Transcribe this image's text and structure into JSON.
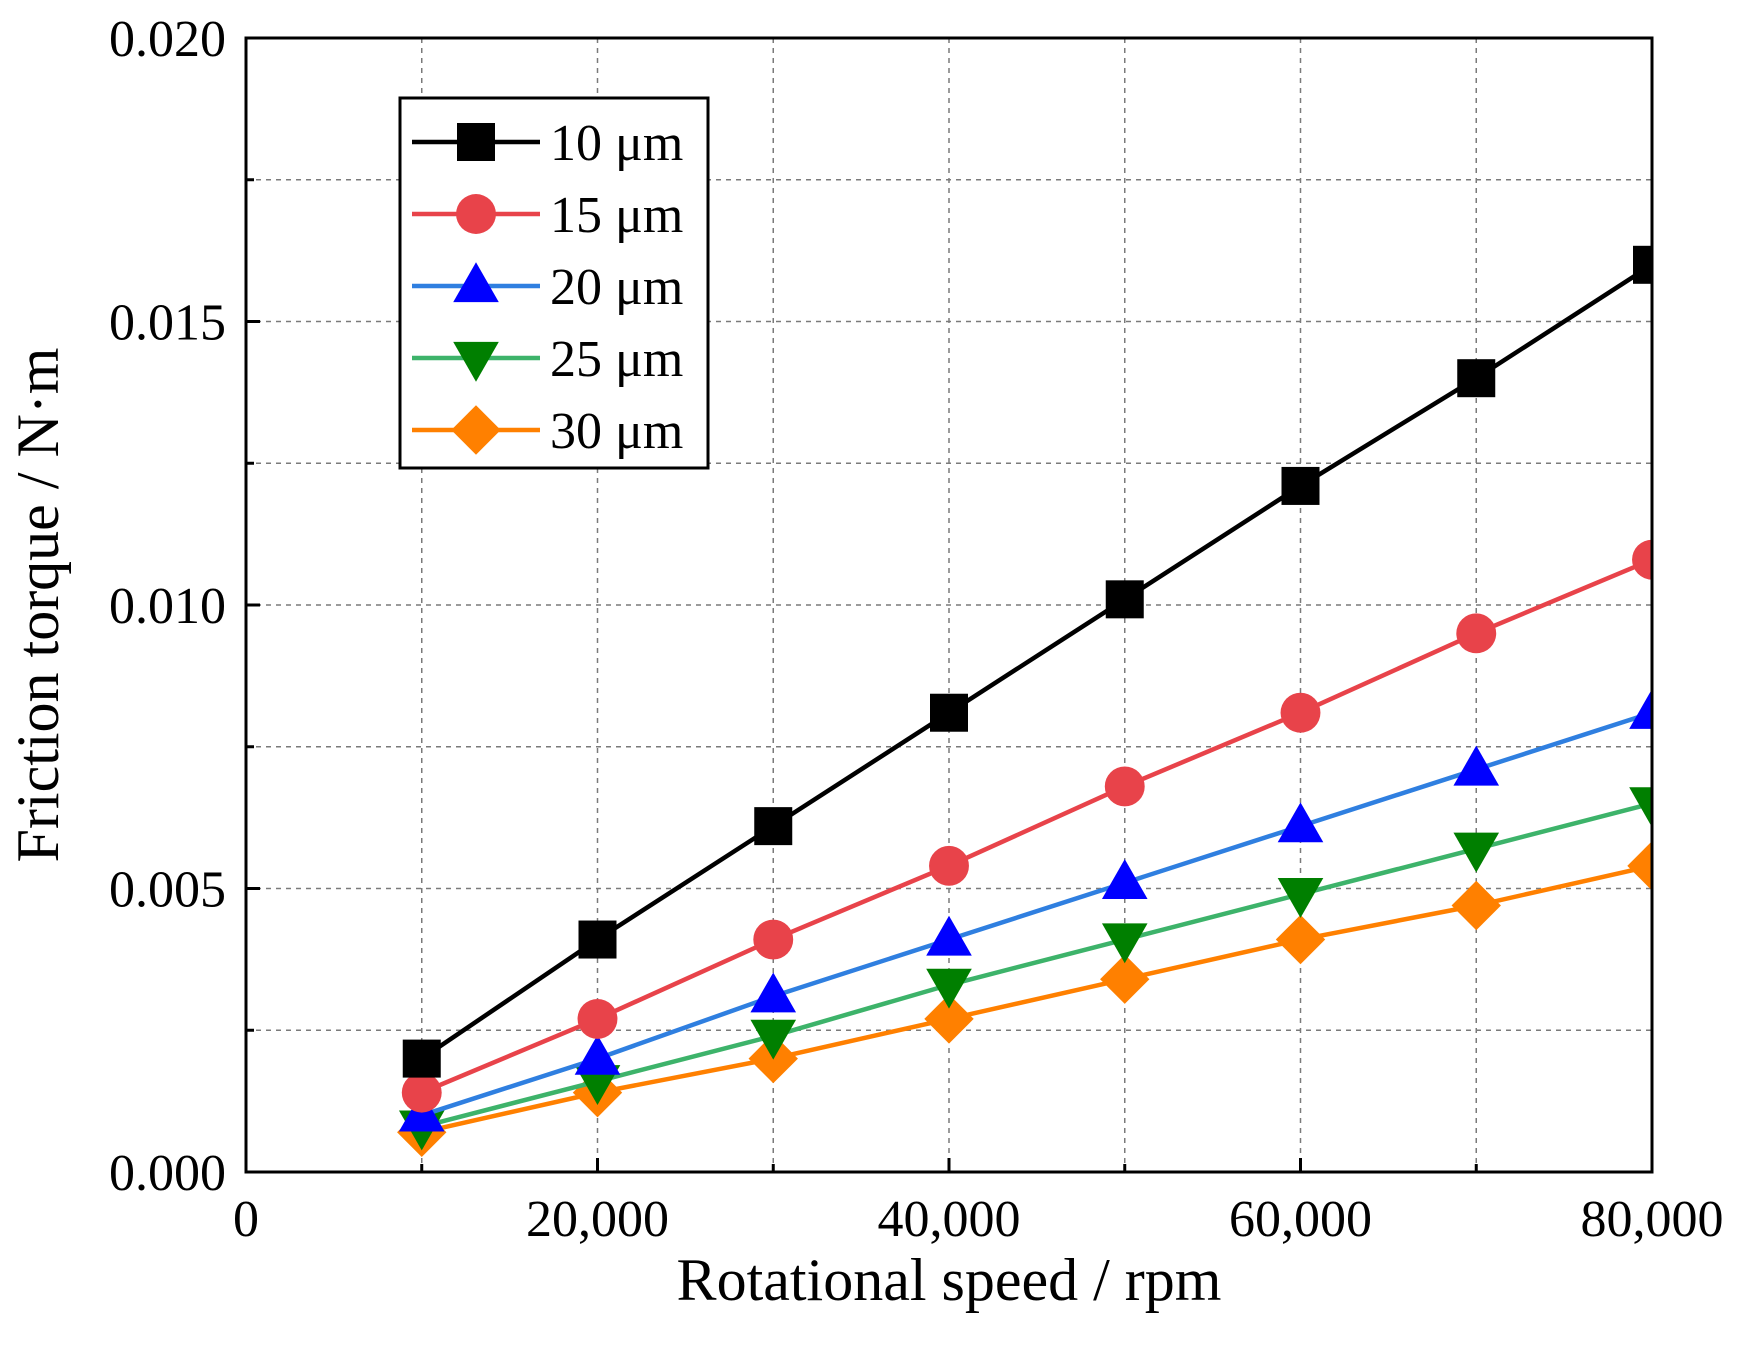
{
  "chart_data": {
    "type": "line",
    "title": "",
    "xlabel": "Rotational speed / rpm",
    "ylabel": "Friction torque / N·m",
    "xlim": [
      0,
      80000
    ],
    "ylim": [
      0,
      0.02
    ],
    "x_ticks": [
      0,
      20000,
      40000,
      60000,
      80000
    ],
    "x_tick_labels": [
      "0",
      "20,000",
      "40,000",
      "60,000",
      "80,000"
    ],
    "y_ticks": [
      0,
      0.005,
      0.01,
      0.015,
      0.02
    ],
    "y_tick_labels": [
      "0.000",
      "0.005",
      "0.010",
      "0.015",
      "0.020"
    ],
    "grid": true,
    "legend_position": "top-left",
    "x": [
      10000,
      20000,
      30000,
      40000,
      50000,
      60000,
      70000,
      80000
    ],
    "series": [
      {
        "name": "10 μm",
        "color": "#000000",
        "marker": "square",
        "values": [
          0.002,
          0.0041,
          0.0061,
          0.0081,
          0.0101,
          0.0121,
          0.014,
          0.016
        ]
      },
      {
        "name": "15 μm",
        "color": "#e8434a",
        "marker": "circle",
        "values": [
          0.0014,
          0.0027,
          0.0041,
          0.0054,
          0.0068,
          0.0081,
          0.0095,
          0.0108
        ]
      },
      {
        "name": "20 μm",
        "color": "#0000ff",
        "marker": "triangle-up",
        "line_color": "#2f7fe0",
        "values": [
          0.001,
          0.002,
          0.0031,
          0.0041,
          0.0051,
          0.0061,
          0.0071,
          0.0081
        ]
      },
      {
        "name": "25 μm",
        "color": "#007f00",
        "marker": "triangle-down",
        "line_color": "#3db36a",
        "values": [
          0.0008,
          0.0016,
          0.0024,
          0.0033,
          0.0041,
          0.0049,
          0.0057,
          0.0065
        ]
      },
      {
        "name": "30 μm",
        "color": "#ff8000",
        "marker": "diamond",
        "values": [
          0.0007,
          0.0014,
          0.002,
          0.0027,
          0.0034,
          0.0041,
          0.0047,
          0.0054
        ]
      }
    ]
  }
}
